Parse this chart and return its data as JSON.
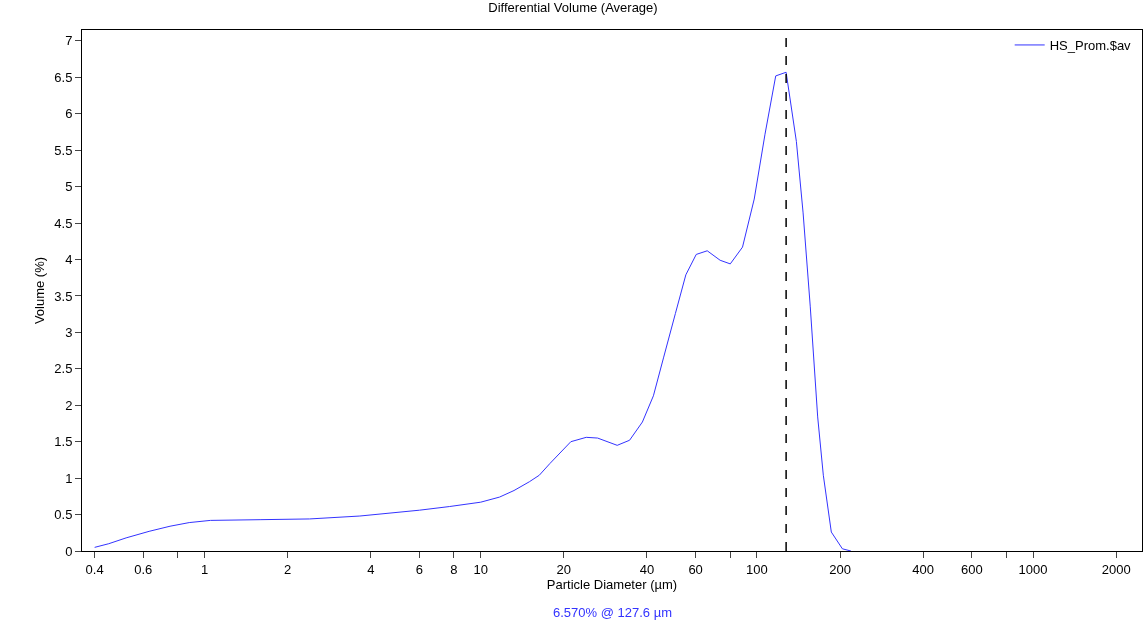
{
  "chart_data": {
    "type": "line",
    "title": "Differential Volume (Average)",
    "xlabel": "Particle Diameter (µm)",
    "ylabel": "Volume (%)",
    "annotations": [
      "6.570% @ 127.6 µm"
    ],
    "log": "x",
    "x": [
      0.4,
      0.45,
      0.52,
      0.63,
      0.75,
      0.88,
      1.05,
      1.6,
      2.4,
      3.65,
      6.0,
      7.7,
      10,
      11.7,
      13.2,
      15,
      16.3,
      17.8,
      21.2,
      24.1,
      26.5,
      31.2,
      34.6,
      38.5,
      42.2,
      45.9,
      50.7,
      55.3,
      60.3,
      66.1,
      73.6,
      80.1,
      88.7,
      97.8,
      107,
      117,
      127.6,
      139,
      147,
      156,
      166,
      174,
      186,
      204,
      219
    ],
    "series": [
      {
        "name": "HS_Prom.$av",
        "color": "#3333ff",
        "values": [
          0.05,
          0.1,
          0.18,
          0.27,
          0.34,
          0.39,
          0.42,
          0.43,
          0.44,
          0.48,
          0.56,
          0.61,
          0.67,
          0.74,
          0.83,
          0.95,
          1.04,
          1.2,
          1.5,
          1.56,
          1.55,
          1.45,
          1.52,
          1.77,
          2.13,
          2.65,
          3.26,
          3.79,
          4.07,
          4.12,
          3.99,
          3.94,
          4.17,
          4.83,
          5.72,
          6.52,
          6.57,
          5.62,
          4.64,
          3.36,
          1.84,
          1.04,
          0.26,
          0.03,
          0
        ]
      }
    ],
    "xlim": [
      0.36,
      2480
    ],
    "xticks": [
      0.4,
      0.6,
      {
        "value": 0.8,
        "label": null
      },
      1,
      2,
      4,
      6,
      8,
      10,
      20,
      40,
      60,
      {
        "value": 80,
        "label": null
      },
      100,
      200,
      400,
      600,
      {
        "value": 800,
        "label": null
      },
      1000,
      2000
    ],
    "ylim": [
      0,
      7.15
    ],
    "yticks": [
      0,
      0.5,
      1,
      1.5,
      2,
      2.5,
      3,
      3.5,
      4,
      4.5,
      5,
      5.5,
      6,
      6.5,
      7
    ],
    "ref_lines": [
      {
        "axis": "x",
        "value": 127.6,
        "color": "#000000",
        "line_style": "dashed"
      }
    ],
    "legend": "top right",
    "marker": "none",
    "line_style": "solid"
  }
}
